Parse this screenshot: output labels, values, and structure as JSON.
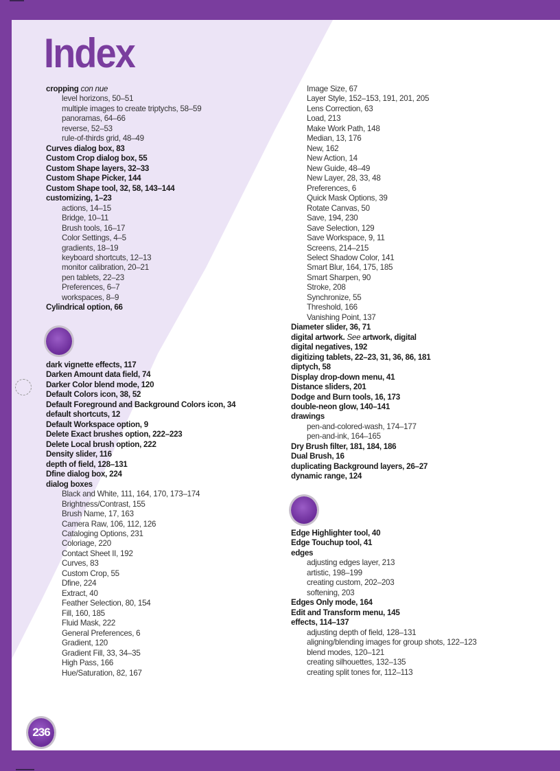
{
  "page": {
    "title": "Index",
    "page_number": "236",
    "accent_color": "#7a3d9e",
    "panel_color": "#ece4f6"
  },
  "columns": {
    "left_top": [
      {
        "text": "cropping",
        "italic": "con nue",
        "level": 0
      },
      {
        "text": "level horizons, 50–51",
        "level": 1
      },
      {
        "text": "multiple images to create triptychs, 58–59",
        "level": 1
      },
      {
        "text": "panoramas, 64–66",
        "level": 1
      },
      {
        "text": "reverse, 52–53",
        "level": 1
      },
      {
        "text": "rule-of-thirds grid, 48–49",
        "level": 1
      },
      {
        "text": "Curves dialog box, 83",
        "level": 0
      },
      {
        "text": "Custom Crop dialog box, 55",
        "level": 0
      },
      {
        "text": "Custom Shape layers, 32–33",
        "level": 0
      },
      {
        "text": "Custom Shape Picker, 144",
        "level": 0
      },
      {
        "text": "Custom Shape tool, 32, 58, 143–144",
        "level": 0
      },
      {
        "text": "customizing, 1–23",
        "level": 0
      },
      {
        "text": "actions, 14–15",
        "level": 1
      },
      {
        "text": "Bridge, 10–11",
        "level": 1
      },
      {
        "text": "Brush tools, 16–17",
        "level": 1
      },
      {
        "text": "Color Settings, 4–5",
        "level": 1
      },
      {
        "text": "gradients, 18–19",
        "level": 1
      },
      {
        "text": "keyboard shortcuts, 12–13",
        "level": 1
      },
      {
        "text": "monitor calibration, 20–21",
        "level": 1
      },
      {
        "text": "pen tablets, 22–23",
        "level": 1
      },
      {
        "text": "Preferences, 6–7",
        "level": 1
      },
      {
        "text": "workspaces, 8–9",
        "level": 1
      },
      {
        "text": "Cylindrical option, 66",
        "level": 0
      }
    ],
    "left_bottom": [
      {
        "text": "dark vignette effects, 117",
        "level": 0
      },
      {
        "text": "Darken Amount data field, 74",
        "level": 0
      },
      {
        "text": "Darker Color blend mode, 120",
        "level": 0
      },
      {
        "text": "Default Colors icon, 38, 52",
        "level": 0
      },
      {
        "text": "Default Foreground and Background Colors icon, 34",
        "level": 0
      },
      {
        "text": "default shortcuts, 12",
        "level": 0
      },
      {
        "text": "Default Workspace option, 9",
        "level": 0
      },
      {
        "text": "Delete Exact brushes option, 222–223",
        "level": 0
      },
      {
        "text": "Delete Local brush option, 222",
        "level": 0
      },
      {
        "text": "Density slider, 116",
        "level": 0
      },
      {
        "text": "depth of field, 128–131",
        "level": 0
      },
      {
        "text": "Dfine dialog box, 224",
        "level": 0
      },
      {
        "text": "dialog boxes",
        "level": 0
      },
      {
        "text": "Black and White, 111, 164, 170, 173–174",
        "level": 1
      },
      {
        "text": "Brightness/Contrast, 155",
        "level": 1
      },
      {
        "text": "Brush Name, 17, 163",
        "level": 1
      },
      {
        "text": "Camera Raw, 106, 112, 126",
        "level": 1
      },
      {
        "text": "Cataloging Options, 231",
        "level": 1
      },
      {
        "text": "Coloriage, 220",
        "level": 1
      },
      {
        "text": "Contact Sheet II, 192",
        "level": 1
      },
      {
        "text": "Curves, 83",
        "level": 1
      },
      {
        "text": "Custom Crop, 55",
        "level": 1
      },
      {
        "text": "Dfine, 224",
        "level": 1
      },
      {
        "text": "Extract, 40",
        "level": 1
      },
      {
        "text": "Feather Selection, 80, 154",
        "level": 1
      },
      {
        "text": "Fill, 160, 185",
        "level": 1
      },
      {
        "text": "Fluid Mask, 222",
        "level": 1
      },
      {
        "text": "General Preferences, 6",
        "level": 1
      },
      {
        "text": "Gradient, 120",
        "level": 1
      },
      {
        "text": "Gradient Fill, 33, 34–35",
        "level": 1
      },
      {
        "text": "High Pass, 166",
        "level": 1
      },
      {
        "text": "Hue/Saturation, 82, 167",
        "level": 1
      }
    ],
    "right_top": [
      {
        "text": "Image Size, 67",
        "level": 1
      },
      {
        "text": "Layer Style, 152–153, 191, 201, 205",
        "level": 1
      },
      {
        "text": "Lens Correction, 63",
        "level": 1
      },
      {
        "text": "Load, 213",
        "level": 1
      },
      {
        "text": "Make Work Path, 148",
        "level": 1
      },
      {
        "text": "Median, 13, 176",
        "level": 1
      },
      {
        "text": "New, 162",
        "level": 1
      },
      {
        "text": "New Action, 14",
        "level": 1
      },
      {
        "text": "New Guide, 48–49",
        "level": 1
      },
      {
        "text": "New Layer, 28, 33, 48",
        "level": 1
      },
      {
        "text": "Preferences, 6",
        "level": 1
      },
      {
        "text": "Quick Mask Options, 39",
        "level": 1
      },
      {
        "text": "Rotate Canvas, 50",
        "level": 1
      },
      {
        "text": "Save, 194, 230",
        "level": 1
      },
      {
        "text": "Save Selection, 129",
        "level": 1
      },
      {
        "text": "Save Workspace, 9, 11",
        "level": 1
      },
      {
        "text": "Screens, 214–215",
        "level": 1
      },
      {
        "text": "Select Shadow Color, 141",
        "level": 1
      },
      {
        "text": "Smart Blur, 164, 175, 185",
        "level": 1
      },
      {
        "text": "Smart Sharpen, 90",
        "level": 1
      },
      {
        "text": "Stroke, 208",
        "level": 1
      },
      {
        "text": "Synchronize, 55",
        "level": 1
      },
      {
        "text": "Threshold, 166",
        "level": 1
      },
      {
        "text": "Vanishing Point, 137",
        "level": 1
      },
      {
        "text": "Diameter slider, 36, 71",
        "level": 0
      },
      {
        "text": "digital artwork. ",
        "italic": "See",
        "after": " artwork, digital",
        "level": 0
      },
      {
        "text": "digital negatives, 192",
        "level": 0
      },
      {
        "text": "digitizing tablets, 22–23, 31, 36, 86, 181",
        "level": 0
      },
      {
        "text": "diptych, 58",
        "level": 0
      },
      {
        "text": "Display drop-down menu, 41",
        "level": 0
      },
      {
        "text": "Distance sliders, 201",
        "level": 0
      },
      {
        "text": "Dodge and Burn tools, 16, 173",
        "level": 0
      },
      {
        "text": "double-neon glow, 140–141",
        "level": 0
      },
      {
        "text": "drawings",
        "level": 0
      },
      {
        "text": "pen-and-colored-wash, 174–177",
        "level": 1
      },
      {
        "text": "pen-and-ink, 164–165",
        "level": 1
      },
      {
        "text": "Dry Brush filter, 181, 184, 186",
        "level": 0
      },
      {
        "text": "Dual Brush, 16",
        "level": 0
      },
      {
        "text": "duplicating Background layers, 26–27",
        "level": 0
      },
      {
        "text": "dynamic range, 124",
        "level": 0
      }
    ],
    "right_bottom": [
      {
        "text": "Edge Highlighter tool, 40",
        "level": 0
      },
      {
        "text": "Edge Touchup tool, 41",
        "level": 0
      },
      {
        "text": "edges",
        "level": 0
      },
      {
        "text": "adjusting edges layer, 213",
        "level": 1
      },
      {
        "text": "artistic, 198–199",
        "level": 1
      },
      {
        "text": "creating custom, 202–203",
        "level": 1
      },
      {
        "text": "softening, 203",
        "level": 1
      },
      {
        "text": "Edges Only mode, 164",
        "level": 0
      },
      {
        "text": "Edit and Transform menu, 145",
        "level": 0
      },
      {
        "text": "effects, 114–137",
        "level": 0
      },
      {
        "text": "adjusting depth of field, 128–131",
        "level": 1
      },
      {
        "text": "aligning/blending images for group shots, 122–123",
        "level": 1
      },
      {
        "text": "blend modes, 120–121",
        "level": 1
      },
      {
        "text": "creating silhouettes, 132–135",
        "level": 1
      },
      {
        "text": "creating split tones for, 112–113",
        "level": 1
      }
    ]
  }
}
